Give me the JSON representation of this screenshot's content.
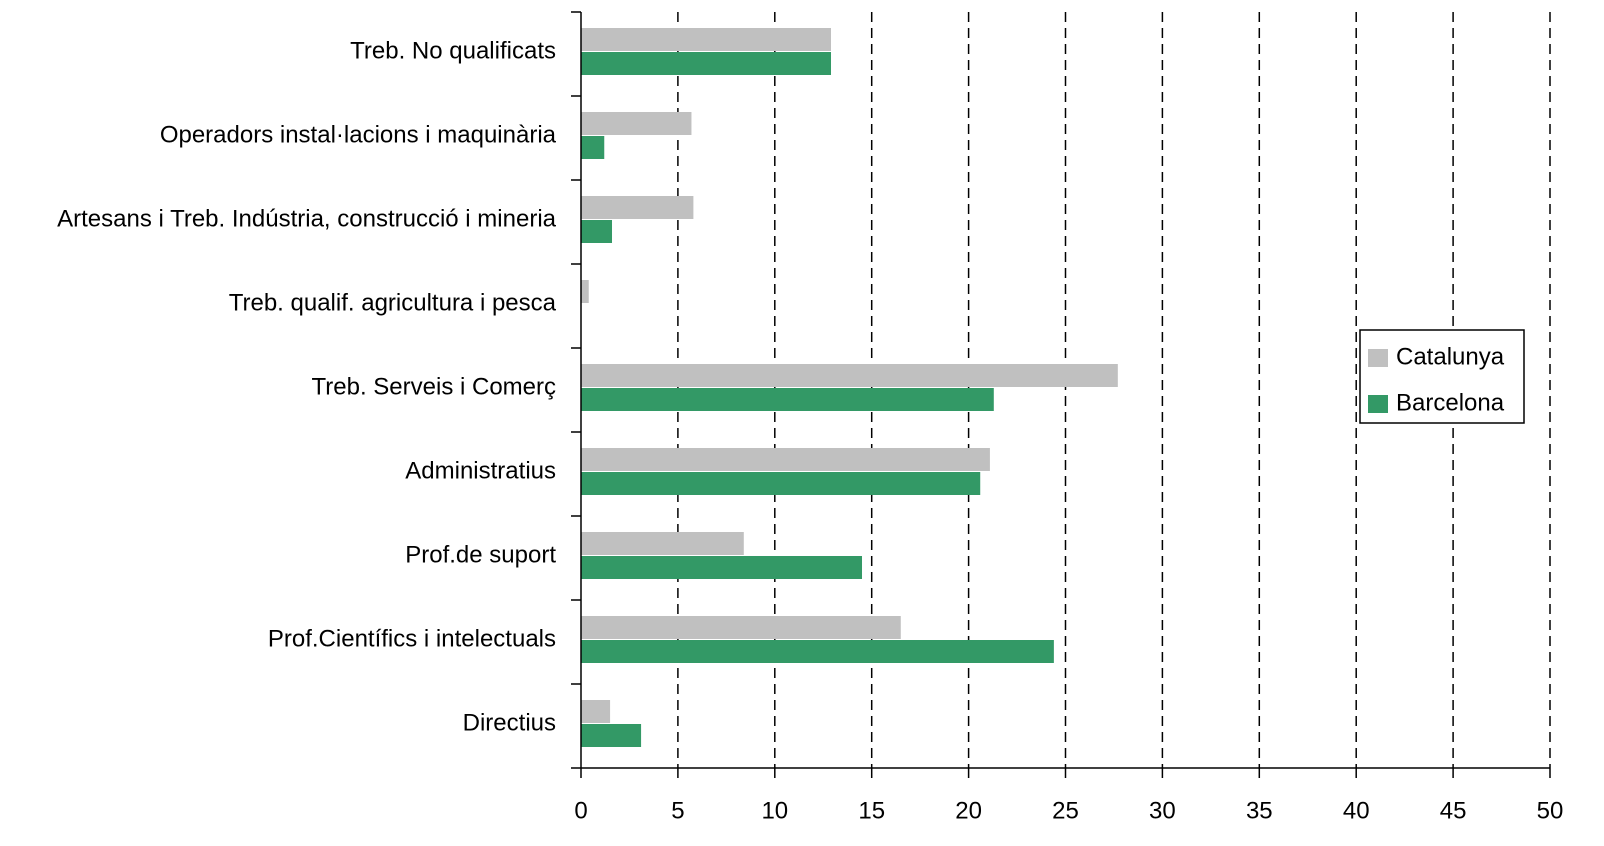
{
  "chart_data": {
    "type": "bar",
    "orientation": "horizontal",
    "categories": [
      "Treb. No qualificats",
      "Operadors instal·lacions i maquinària",
      "Artesans i Treb. Indústria, construcció i mineria",
      "Treb. qualif. agricultura i pesca",
      "Treb. Serveis i Comerç",
      "Administratius",
      "Prof.de suport",
      "Prof.Científics i intelectuals",
      "Directius"
    ],
    "series": [
      {
        "name": "Catalunya",
        "color": "#c0c0c0",
        "values": [
          12.9,
          5.7,
          5.8,
          0.4,
          27.7,
          21.1,
          8.4,
          16.5,
          1.5
        ]
      },
      {
        "name": "Barcelona",
        "color": "#339966",
        "values": [
          12.9,
          1.2,
          1.6,
          0,
          21.3,
          20.6,
          14.5,
          24.4,
          3.1
        ]
      }
    ],
    "xlim": [
      0,
      50
    ],
    "xticks": [
      0,
      5,
      10,
      15,
      20,
      25,
      30,
      35,
      40,
      45,
      50
    ],
    "grid": true,
    "legend": "right"
  }
}
